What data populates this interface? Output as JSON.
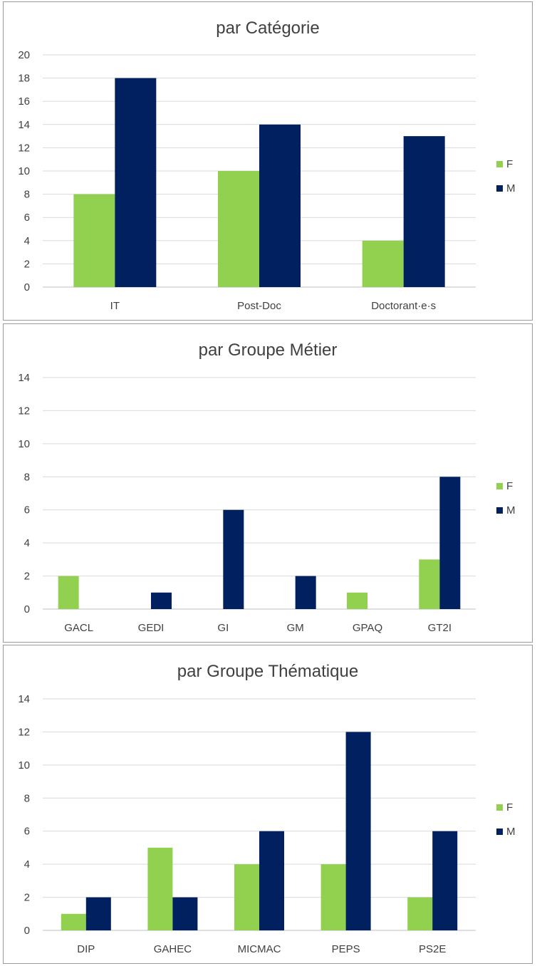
{
  "colors": {
    "F": "#92d050",
    "M": "#002060",
    "grid": "#d9d9d9",
    "axis": "#bfbfbf"
  },
  "chart_data": [
    {
      "type": "bar",
      "title": "par Catégorie",
      "categories": [
        "IT",
        "Post-Doc",
        "Doctorant·e·s"
      ],
      "series": [
        {
          "name": "F",
          "values": [
            8,
            10,
            4
          ]
        },
        {
          "name": "M",
          "values": [
            18,
            14,
            13
          ]
        }
      ],
      "ylim": [
        0,
        20
      ],
      "yticks": [
        0,
        2,
        4,
        6,
        8,
        10,
        12,
        14,
        16,
        18,
        20
      ],
      "yticks_text": [
        "0",
        "2",
        "4",
        "6",
        "8",
        "10",
        "12",
        "14",
        "16",
        "18",
        "20"
      ],
      "grid": true,
      "legend": "right"
    },
    {
      "type": "bar",
      "title": "par Groupe Métier",
      "categories": [
        "GACL",
        "GEDI",
        "GI",
        "GM",
        "GPAQ",
        "GT2I"
      ],
      "series": [
        {
          "name": "F",
          "values": [
            2,
            0,
            0,
            0,
            1,
            3
          ]
        },
        {
          "name": "M",
          "values": [
            0,
            1,
            6,
            2,
            0,
            8
          ]
        }
      ],
      "ylim": [
        0,
        14
      ],
      "yticks": [
        0,
        2,
        4,
        6,
        8,
        10,
        12,
        14
      ],
      "yticks_text": [
        "0",
        "2",
        "4",
        "6",
        "8",
        "10",
        "12",
        "14"
      ],
      "grid": true,
      "legend": "right"
    },
    {
      "type": "bar",
      "title": "par Groupe Thématique",
      "categories": [
        "DIP",
        "GAHEC",
        "MICMAC",
        "PEPS",
        "PS2E"
      ],
      "series": [
        {
          "name": "F",
          "values": [
            1,
            5,
            4,
            4,
            2
          ]
        },
        {
          "name": "M",
          "values": [
            2,
            2,
            6,
            12,
            6
          ]
        }
      ],
      "ylim": [
        0,
        14
      ],
      "yticks": [
        0,
        2,
        4,
        6,
        8,
        10,
        12,
        14
      ],
      "yticks_text": [
        "0",
        "2",
        "4",
        "6",
        "8",
        "10",
        "12",
        "14"
      ],
      "grid": true,
      "legend": "right"
    }
  ]
}
